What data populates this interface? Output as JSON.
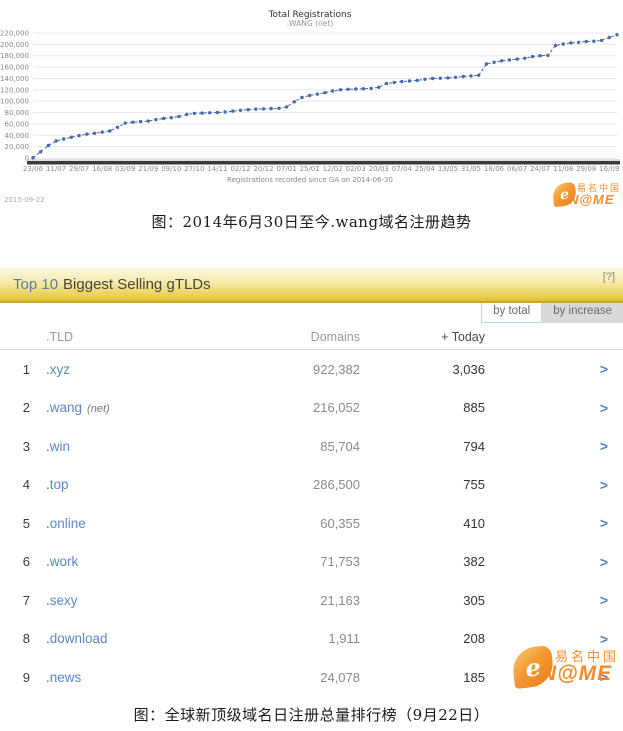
{
  "chart_data": [
    {
      "type": "line",
      "title": "Total Registrations",
      "subtitle": ".WANG (net)",
      "xlabel": "Registrations recorded since GA on 2014-06-30",
      "stamp": "2015-09-22",
      "ylim": [
        0,
        220000
      ],
      "y_tick_step": 20000,
      "grid": true,
      "line_color": "#4a69ad",
      "line_style": "dashed",
      "markers": true,
      "x_tick_labels": [
        "23/06",
        "11/07",
        "29/07",
        "16/08",
        "03/09",
        "21/09",
        "09/10",
        "27/10",
        "14/11",
        "02/12",
        "20/12",
        "07/01",
        "25/01",
        "12/02",
        "02/03",
        "20/03",
        "07/04",
        "25/04",
        "13/05",
        "31/05",
        "18/06",
        "06/07",
        "24/07",
        "11/08",
        "29/08",
        "16/09"
      ],
      "points_per_label_interval": 3,
      "values": [
        500,
        11000,
        22000,
        30000,
        33500,
        36500,
        39500,
        42000,
        43500,
        45500,
        47500,
        54000,
        61500,
        63000,
        64000,
        65000,
        67500,
        69500,
        71000,
        73000,
        76500,
        78500,
        79000,
        79500,
        80000,
        81000,
        82500,
        84000,
        85000,
        86000,
        86500,
        87000,
        87500,
        90000,
        99000,
        106500,
        110000,
        112500,
        115000,
        118000,
        120000,
        121000,
        121500,
        122000,
        122500,
        124500,
        131000,
        133000,
        134500,
        135500,
        136500,
        138500,
        140000,
        140500,
        141000,
        142000,
        143500,
        144500,
        145500,
        165500,
        168500,
        171000,
        172500,
        174000,
        175500,
        178500,
        180000,
        180500,
        198000,
        200500,
        202500,
        203500,
        205000,
        205500,
        207000,
        212000,
        217000
      ]
    },
    {
      "type": "table",
      "title_prefix": "Top 10",
      "title_rest": "Biggest Selling gTLDs",
      "help_label": "[?]",
      "tabs": [
        {
          "label": "by total",
          "active": true
        },
        {
          "label": "by increase",
          "active": false
        }
      ],
      "columns": [
        ".TLD",
        "Domains",
        "+ Today"
      ],
      "chevron": ">",
      "rows": [
        {
          "rank": "1",
          "tld": ".xyz",
          "note": "",
          "domains": "922,382",
          "today": "3,036"
        },
        {
          "rank": "2",
          "tld": ".wang",
          "note": "(net)",
          "domains": "216,052",
          "today": "885"
        },
        {
          "rank": "3",
          "tld": ".win",
          "note": "",
          "domains": "85,704",
          "today": "794"
        },
        {
          "rank": "4",
          "tld": ".top",
          "note": "",
          "domains": "286,500",
          "today": "755"
        },
        {
          "rank": "5",
          "tld": ".online",
          "note": "",
          "domains": "60,355",
          "today": "410"
        },
        {
          "rank": "6",
          "tld": ".work",
          "note": "",
          "domains": "71,753",
          "today": "382"
        },
        {
          "rank": "7",
          "tld": ".sexy",
          "note": "",
          "domains": "21,163",
          "today": "305"
        },
        {
          "rank": "8",
          "tld": ".download",
          "note": "",
          "domains": "1,911",
          "today": "208"
        },
        {
          "rank": "9",
          "tld": ".news",
          "note": "",
          "domains": "24,078",
          "today": "185"
        }
      ]
    }
  ],
  "captions": {
    "chart_caption": "图：2014年6月30日至今.wang域名注册趋势",
    "table_caption": "图：全球新顶级域名日注册总量排行榜（9月22日）"
  },
  "logo": {
    "cjk": "易名中国",
    "latin": "N@ME",
    "e": "e",
    "orange": "#f08419"
  },
  "colors": {
    "panel_gold": "#dfc02f",
    "link_blue": "#5b87c5",
    "line_blue": "#4a69ad"
  }
}
